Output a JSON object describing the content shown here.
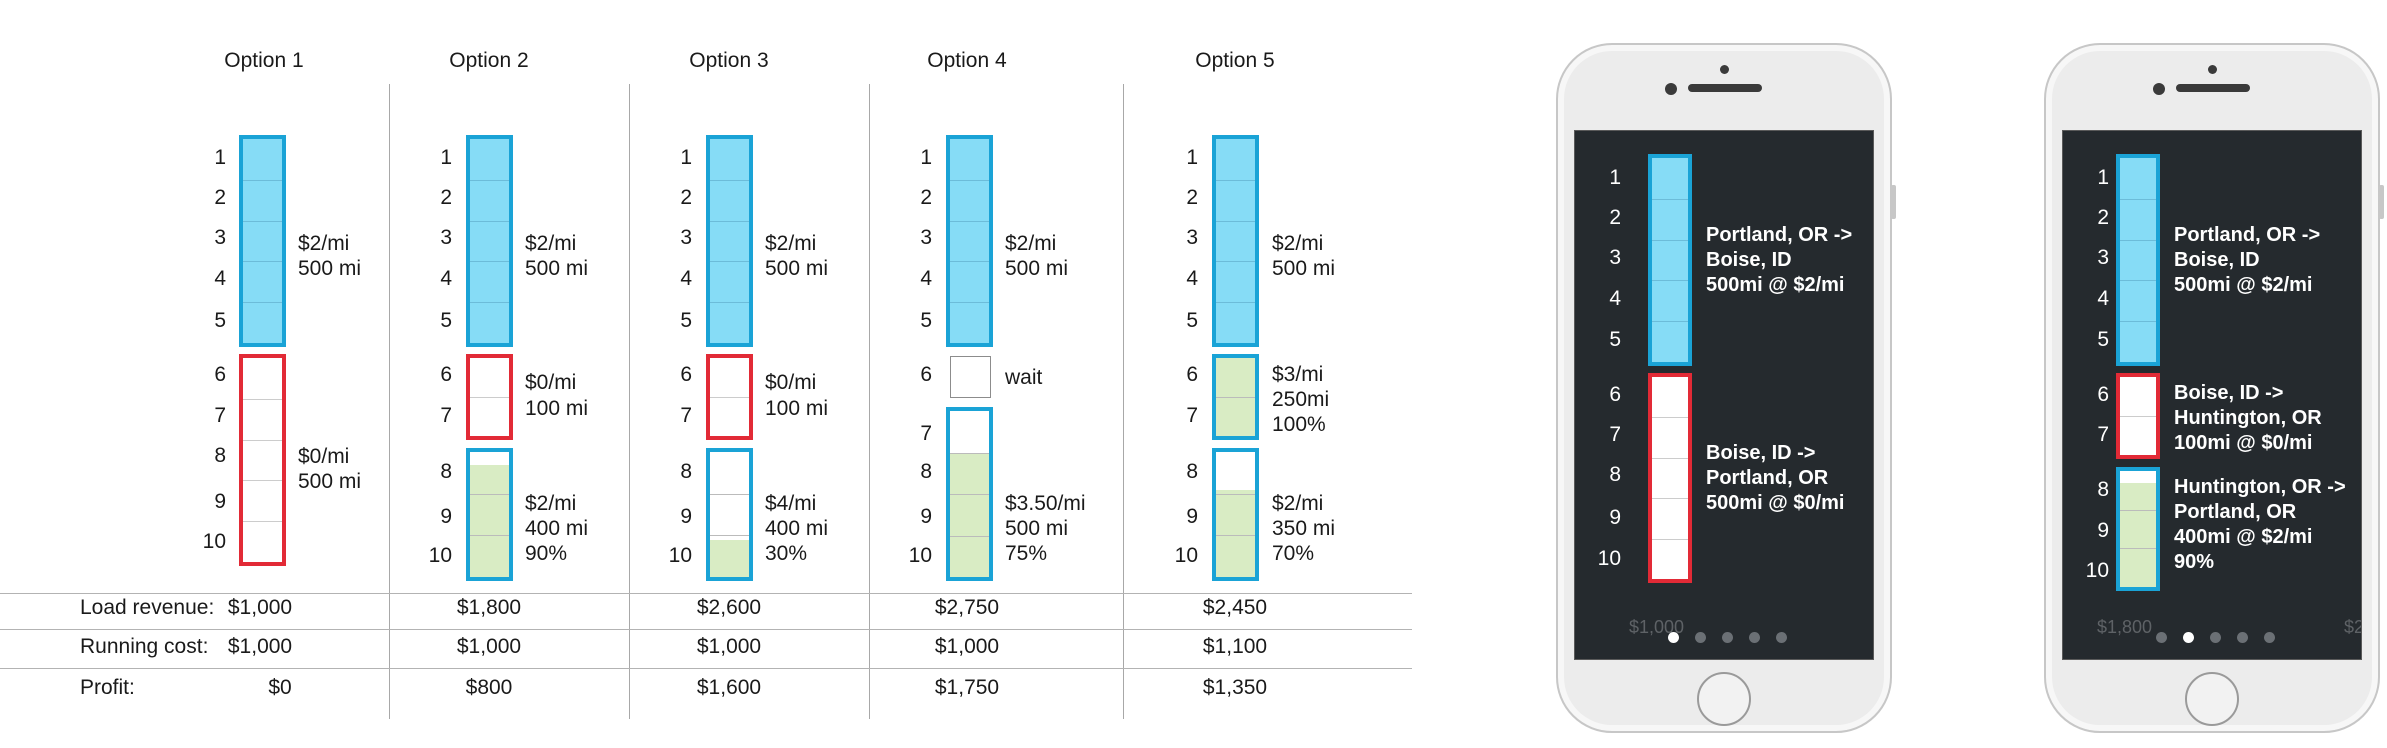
{
  "options": [
    {
      "title": "Option 1"
    },
    {
      "title": "Option 2"
    },
    {
      "title": "Option 3"
    },
    {
      "title": "Option 4"
    },
    {
      "title": "Option 5"
    }
  ],
  "hour_labels": [
    "1",
    "2",
    "3",
    "4",
    "5",
    "6",
    "7",
    "8",
    "9",
    "10"
  ],
  "segments": {
    "o1_a": {
      "line1": "$2/mi",
      "line2": "500 mi"
    },
    "o1_b": {
      "line1": "$0/mi",
      "line2": "500 mi"
    },
    "o2_a": {
      "line1": "$2/mi",
      "line2": "500 mi"
    },
    "o2_b": {
      "line1": "$0/mi",
      "line2": "100 mi"
    },
    "o2_c": {
      "line1": "$2/mi",
      "line2": "400 mi",
      "line3": "90%",
      "fill": 0.9
    },
    "o3_a": {
      "line1": "$2/mi",
      "line2": "500 mi"
    },
    "o3_b": {
      "line1": "$0/mi",
      "line2": "100 mi"
    },
    "o3_c": {
      "line1": "$4/mi",
      "line2": "400 mi",
      "line3": "30%",
      "fill": 0.3
    },
    "o4_a": {
      "line1": "$2/mi",
      "line2": "500 mi"
    },
    "o4_wait": {
      "line1": "wait"
    },
    "o4_c": {
      "line1": "$3.50/mi",
      "line2": "500 mi",
      "line3": "75%",
      "fill": 0.75
    },
    "o5_a": {
      "line1": "$2/mi",
      "line2": "500 mi"
    },
    "o5_b": {
      "line1": "$3/mi",
      "line2": "250mi",
      "line3": "100%",
      "fill": 1.0
    },
    "o5_c": {
      "line1": "$2/mi",
      "line2": "350 mi",
      "line3": "70%",
      "fill": 0.7
    }
  },
  "table": {
    "rows": [
      {
        "label": "Load revenue:",
        "values": [
          "$1,000",
          "$1,800",
          "$2,600",
          "$2,750",
          "$2,450"
        ]
      },
      {
        "label": "Running cost:",
        "values": [
          "$1,000",
          "$1,000",
          "$1,000",
          "$1,000",
          "$1,100"
        ]
      },
      {
        "label": "Profit:",
        "values": [
          "$0",
          "$800",
          "$1,600",
          "$1,750",
          "$1,350"
        ]
      }
    ]
  },
  "phone1": {
    "route_a": {
      "line1": "Portland, OR ->",
      "line2": "Boise, ID",
      "line3": "500mi @ $2/mi"
    },
    "route_b": {
      "line1": "Boise, ID ->",
      "line2": "Portland, OR",
      "line3": "500mi @ $0/mi"
    },
    "ghost_text": "$1,000",
    "active_page": 0
  },
  "phone2": {
    "route_a": {
      "line1": "Portland, OR ->",
      "line2": "Boise, ID",
      "line3": "500mi @ $2/mi"
    },
    "route_b": {
      "line1": "Boise, ID ->",
      "line2": "Huntington, OR",
      "line3": "100mi @ $0/mi"
    },
    "route_c": {
      "line1": "Huntington, OR ->",
      "line2": "Portland, OR",
      "line3": "400mi @ $2/mi",
      "line4": "90%",
      "fill": 0.9
    },
    "ghost_text": "$1,800",
    "ghost_text_right": "$2",
    "active_page": 1
  },
  "colors": {
    "loaded_fill": "#86dcf6",
    "loaded_border": "#1aa3d6",
    "empty_border": "#e22a36",
    "partial_fill": "#d9ecc4",
    "screen_bg": "#252a2e"
  }
}
